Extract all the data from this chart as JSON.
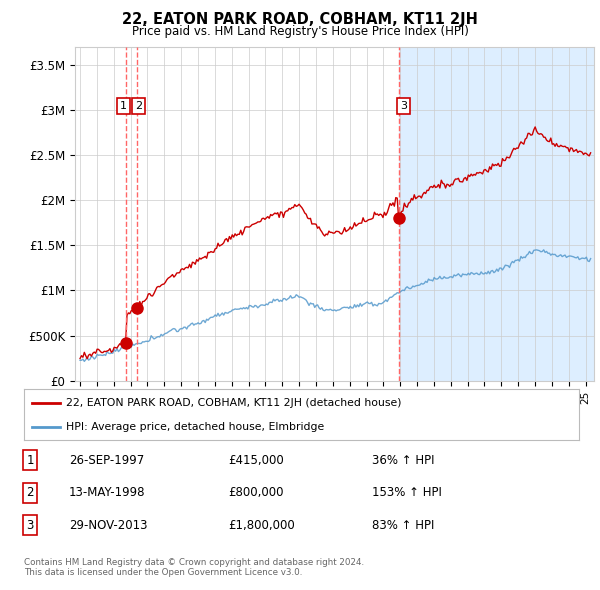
{
  "title": "22, EATON PARK ROAD, COBHAM, KT11 2JH",
  "subtitle": "Price paid vs. HM Land Registry's House Price Index (HPI)",
  "ylabel_ticks": [
    "£0",
    "£500K",
    "£1M",
    "£1.5M",
    "£2M",
    "£2.5M",
    "£3M",
    "£3.5M"
  ],
  "ytick_values": [
    0,
    500000,
    1000000,
    1500000,
    2000000,
    2500000,
    3000000,
    3500000
  ],
  "ylim": [
    0,
    3700000
  ],
  "xlim_start": 1994.7,
  "xlim_end": 2025.5,
  "sale_dates": [
    1997.73,
    1998.37,
    2013.91
  ],
  "sale_prices": [
    415000,
    800000,
    1800000
  ],
  "sale_labels": [
    "1",
    "2",
    "3"
  ],
  "vline_dates": [
    1997.73,
    1998.37,
    2013.91
  ],
  "last_sale_shade_start": 2013.91,
  "legend_red": "22, EATON PARK ROAD, COBHAM, KT11 2JH (detached house)",
  "legend_blue": "HPI: Average price, detached house, Elmbridge",
  "table_rows": [
    [
      "1",
      "26-SEP-1997",
      "£415,000",
      "36% ↑ HPI"
    ],
    [
      "2",
      "13-MAY-1998",
      "£800,000",
      "153% ↑ HPI"
    ],
    [
      "3",
      "29-NOV-2013",
      "£1,800,000",
      "83% ↑ HPI"
    ]
  ],
  "footer": "Contains HM Land Registry data © Crown copyright and database right 2024.\nThis data is licensed under the Open Government Licence v3.0.",
  "red_color": "#cc0000",
  "blue_color": "#5599cc",
  "blue_fill_color": "#ddeeff",
  "vline_color": "#ff6666",
  "grid_color": "#cccccc",
  "background_color": "#ffffff",
  "shade_color": "#ddeeff"
}
